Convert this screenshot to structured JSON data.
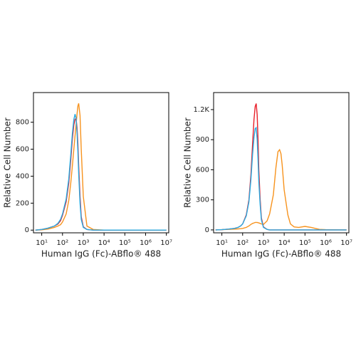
{
  "chart_data": [
    {
      "type": "line",
      "xscale": "log",
      "xlabel": "Human IgG (Fc)-ABflo® 488",
      "ylabel": "Relative Cell Number",
      "xlim": [
        4,
        13000000
      ],
      "ylim": [
        -20,
        1020
      ],
      "xticks": [
        {
          "value": 10,
          "label": "10¹"
        },
        {
          "value": 100,
          "label": "10²"
        },
        {
          "value": 1000,
          "label": "10³"
        },
        {
          "value": 10000,
          "label": "10⁴"
        },
        {
          "value": 100000,
          "label": "10⁵"
        },
        {
          "value": 1000000,
          "label": "10⁶"
        },
        {
          "value": 10000000,
          "label": "10⁷"
        }
      ],
      "yticks": [
        0,
        200,
        400,
        600,
        800
      ],
      "x": [
        5,
        10,
        20,
        40,
        60,
        80,
        100,
        150,
        200,
        250,
        300,
        350,
        400,
        450,
        500,
        550,
        600,
        700,
        800,
        1000,
        1500,
        3000,
        10000,
        100000,
        1000000,
        10000000
      ],
      "series": [
        {
          "color": "#f7931e",
          "values": [
            0,
            2,
            8,
            20,
            30,
            40,
            60,
            120,
            220,
            350,
            480,
            600,
            700,
            780,
            860,
            920,
            940,
            850,
            600,
            250,
            30,
            5,
            0,
            0,
            0,
            0
          ]
        },
        {
          "color": "#e8202a",
          "values": [
            0,
            5,
            15,
            30,
            45,
            70,
            110,
            210,
            350,
            520,
            680,
            780,
            820,
            830,
            760,
            640,
            480,
            250,
            100,
            25,
            5,
            0,
            0,
            0,
            0,
            0
          ]
        },
        {
          "color": "#29abe2",
          "values": [
            0,
            5,
            15,
            30,
            50,
            80,
            120,
            230,
            380,
            560,
            720,
            820,
            860,
            830,
            720,
            580,
            420,
            200,
            80,
            20,
            5,
            0,
            0,
            0,
            0,
            0
          ]
        }
      ]
    },
    {
      "type": "line",
      "xscale": "log",
      "xlabel": "Human IgG (Fc)-ABflo® 488",
      "ylabel": "Relative Cell Number",
      "xlim": [
        4,
        13000000
      ],
      "ylim": [
        -29,
        1370
      ],
      "xticks": [
        {
          "value": 10,
          "label": "10¹"
        },
        {
          "value": 100,
          "label": "10²"
        },
        {
          "value": 1000,
          "label": "10³"
        },
        {
          "value": 10000,
          "label": "10⁴"
        },
        {
          "value": 100000,
          "label": "10⁵"
        },
        {
          "value": 1000000,
          "label": "10⁶"
        },
        {
          "value": 10000000,
          "label": "10⁷"
        }
      ],
      "yticks": [
        0,
        300,
        600,
        900,
        {
          "value": 1200,
          "label": "1.2K"
        }
      ],
      "x": [
        5,
        10,
        20,
        40,
        60,
        80,
        100,
        150,
        200,
        250,
        300,
        350,
        400,
        450,
        500,
        550,
        600,
        700,
        800,
        1000,
        1500,
        2000,
        3000,
        4000,
        5000,
        6000,
        7000,
        8000,
        10000,
        15000,
        20000,
        30000,
        50000,
        100000,
        200000,
        500000,
        1000000,
        10000000
      ],
      "series": [
        {
          "color": "#f7931e",
          "values": [
            0,
            2,
            5,
            8,
            10,
            12,
            15,
            25,
            40,
            55,
            65,
            70,
            75,
            75,
            75,
            72,
            70,
            65,
            60,
            55,
            90,
            160,
            350,
            620,
            780,
            800,
            760,
            650,
            400,
            150,
            60,
            30,
            25,
            35,
            25,
            5,
            2,
            0
          ]
        },
        {
          "color": "#e8202a",
          "values": [
            0,
            2,
            8,
            15,
            25,
            40,
            60,
            150,
            300,
            550,
            850,
            1100,
            1230,
            1260,
            1150,
            900,
            600,
            300,
            120,
            30,
            5,
            0,
            0,
            0,
            0,
            0,
            0,
            0,
            0,
            0,
            0,
            0,
            0,
            0,
            0,
            0,
            0,
            0
          ]
        },
        {
          "color": "#29abe2",
          "values": [
            0,
            2,
            8,
            15,
            25,
            40,
            60,
            140,
            280,
            500,
            750,
            920,
            1010,
            1020,
            900,
            700,
            480,
            250,
            100,
            25,
            5,
            0,
            0,
            0,
            0,
            0,
            0,
            0,
            0,
            0,
            0,
            0,
            0,
            0,
            0,
            0,
            0,
            0
          ]
        }
      ]
    }
  ]
}
